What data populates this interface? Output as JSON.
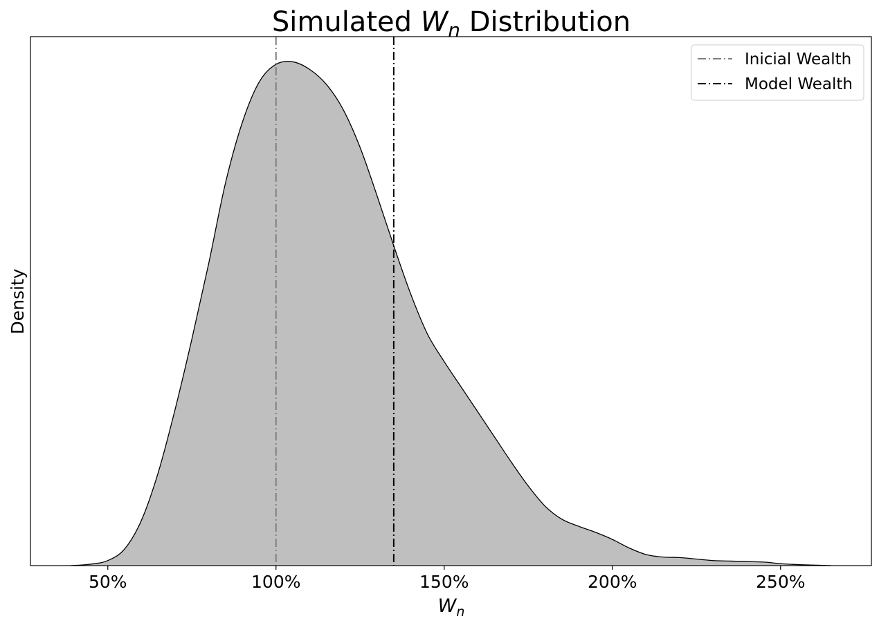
{
  "chart_data": {
    "type": "area",
    "title": {
      "prefix": "Simulated ",
      "symbol": "W",
      "subscript": "n",
      "suffix": " Distribution"
    },
    "xlabel": {
      "symbol": "W",
      "subscript": "n"
    },
    "ylabel": "Density",
    "xlim": [
      0.27,
      2.77
    ],
    "ylim": [
      0,
      1.05
    ],
    "x_ticks": [
      {
        "value": 0.5,
        "label": "50%"
      },
      {
        "value": 1.0,
        "label": "100%"
      },
      {
        "value": 1.5,
        "label": "150%"
      },
      {
        "value": 2.0,
        "label": "200%"
      },
      {
        "value": 2.5,
        "label": "250%"
      }
    ],
    "y_ticks": [],
    "grid": false,
    "legend_position": "top-right",
    "series": [
      {
        "fill": "#bfbfbf",
        "stroke": "#000000",
        "points": [
          [
            0.39,
            0.0
          ],
          [
            0.45,
            0.003
          ],
          [
            0.5,
            0.01
          ],
          [
            0.55,
            0.033
          ],
          [
            0.6,
            0.09
          ],
          [
            0.65,
            0.185
          ],
          [
            0.7,
            0.31
          ],
          [
            0.75,
            0.45
          ],
          [
            0.8,
            0.6
          ],
          [
            0.85,
            0.76
          ],
          [
            0.9,
            0.88
          ],
          [
            0.95,
            0.96
          ],
          [
            1.0,
            0.995
          ],
          [
            1.05,
            1.0
          ],
          [
            1.1,
            0.985
          ],
          [
            1.15,
            0.955
          ],
          [
            1.2,
            0.905
          ],
          [
            1.25,
            0.83
          ],
          [
            1.3,
            0.735
          ],
          [
            1.35,
            0.635
          ],
          [
            1.4,
            0.54
          ],
          [
            1.45,
            0.46
          ],
          [
            1.5,
            0.405
          ],
          [
            1.55,
            0.355
          ],
          [
            1.6,
            0.305
          ],
          [
            1.65,
            0.255
          ],
          [
            1.7,
            0.205
          ],
          [
            1.75,
            0.158
          ],
          [
            1.8,
            0.118
          ],
          [
            1.85,
            0.092
          ],
          [
            1.9,
            0.078
          ],
          [
            1.95,
            0.066
          ],
          [
            2.0,
            0.052
          ],
          [
            2.05,
            0.035
          ],
          [
            2.1,
            0.022
          ],
          [
            2.15,
            0.017
          ],
          [
            2.2,
            0.016
          ],
          [
            2.25,
            0.013
          ],
          [
            2.3,
            0.01
          ],
          [
            2.35,
            0.009
          ],
          [
            2.4,
            0.008
          ],
          [
            2.45,
            0.007
          ],
          [
            2.5,
            0.004
          ],
          [
            2.55,
            0.002
          ],
          [
            2.6,
            0.001
          ],
          [
            2.65,
            0.0
          ]
        ]
      }
    ],
    "vlines": [
      {
        "name": "Inicial Wealth",
        "x": 1.0,
        "color": "#808080",
        "style": "dashdot"
      },
      {
        "name": "Model Wealth",
        "x": 1.35,
        "color": "#000000",
        "style": "dashdot"
      }
    ]
  }
}
